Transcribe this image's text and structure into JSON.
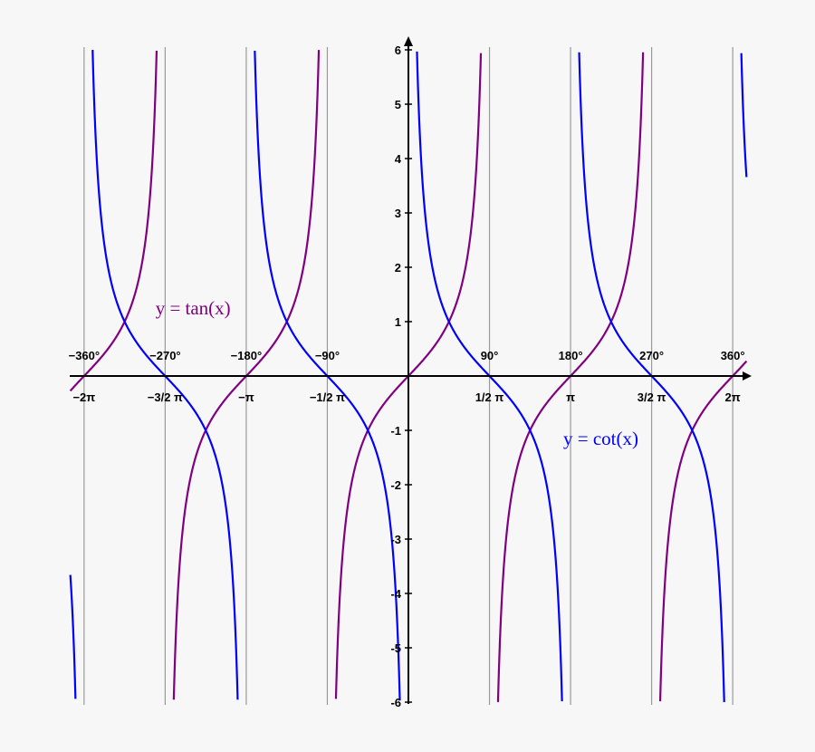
{
  "chart_data": {
    "type": "line",
    "title": "",
    "xlabel": "",
    "ylabel": "",
    "xlim": [
      -6.55,
      6.55
    ],
    "ylim": [
      -6,
      6
    ],
    "grid": "vertical lines at multiples of pi/2",
    "y_ticks": [
      -6,
      -5,
      -4,
      -3,
      -2,
      -1,
      1,
      2,
      3,
      4,
      5,
      6
    ],
    "x_ticks_radians": [
      {
        "value": -6.2832,
        "label": "−2π"
      },
      {
        "value": -4.7124,
        "label": "−3/2 π"
      },
      {
        "value": -3.1416,
        "label": "−π"
      },
      {
        "value": -1.5708,
        "label": "−1/2 π"
      },
      {
        "value": 1.5708,
        "label": "1/2 π"
      },
      {
        "value": 3.1416,
        "label": "π"
      },
      {
        "value": 4.7124,
        "label": "3/2 π"
      },
      {
        "value": 6.2832,
        "label": "2π"
      }
    ],
    "x_ticks_degrees": [
      {
        "value": -6.2832,
        "label": "−360°"
      },
      {
        "value": -4.7124,
        "label": "−270°"
      },
      {
        "value": -3.1416,
        "label": "−180°"
      },
      {
        "value": -1.5708,
        "label": "−90°"
      },
      {
        "value": 1.5708,
        "label": "90°"
      },
      {
        "value": 3.1416,
        "label": "180°"
      },
      {
        "value": 4.7124,
        "label": "270°"
      },
      {
        "value": 6.2832,
        "label": "360°"
      }
    ],
    "series": [
      {
        "name": "y = tan(x)",
        "function": "tan",
        "color": "#800080"
      },
      {
        "name": "y = cot(x)",
        "function": "cot",
        "color": "#0000ff"
      }
    ],
    "annotations": [
      {
        "text": "y = tan(x)",
        "near_x": -4.9,
        "near_y": 1.25,
        "color": "#800080"
      },
      {
        "text": "y = cot(x)",
        "near_x": 3.0,
        "near_y": -1.15,
        "color": "#0000ff"
      }
    ]
  }
}
